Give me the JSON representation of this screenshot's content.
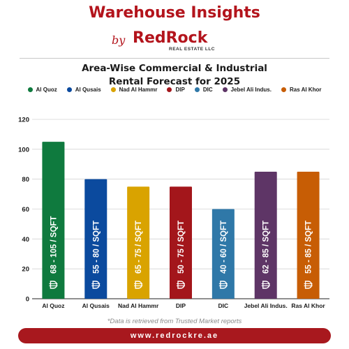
{
  "header": {
    "title": "Warehouse Insights",
    "by": "by",
    "brand_red": "Red",
    "brand_rock": "Rock",
    "brand_sub": "REAL ESTATE LLC",
    "subtitle_line1": "Area-Wise Commercial & Industrial",
    "subtitle_line2": "Rental Forecast for 2025"
  },
  "chart_data": {
    "type": "bar",
    "categories": [
      "Al Quoz",
      "Al Qusais",
      "Nad Al Hammr",
      "DIP",
      "DIC",
      "Jebel Ali Indus.",
      "Ras Al Khor"
    ],
    "values": [
      105,
      80,
      75,
      75,
      60,
      85,
      85
    ],
    "bar_labels": [
      "68 - 105 / SQFT",
      "55 - 80 / SQFT",
      "65 - 75 / SQFT",
      "50 - 75 / SQFT",
      "40 - 60 / SQFT",
      "62 - 85 / SQFT",
      "55 - 85 / SQFT"
    ],
    "colors": [
      "#0f7a3e",
      "#0b4a9e",
      "#d9a300",
      "#a3161b",
      "#2f78a8",
      "#5e3566",
      "#c75d05"
    ],
    "ylim": [
      0,
      120
    ],
    "yticks": [
      "0",
      "20",
      "40",
      "60",
      "80",
      "100",
      "120"
    ],
    "grid": true,
    "legend_position": "top",
    "currency_icon": "dirham-icon"
  },
  "footer": {
    "note": "*Data is retrieved from Trusted Market reports",
    "website": "www.redrockre.ae"
  }
}
